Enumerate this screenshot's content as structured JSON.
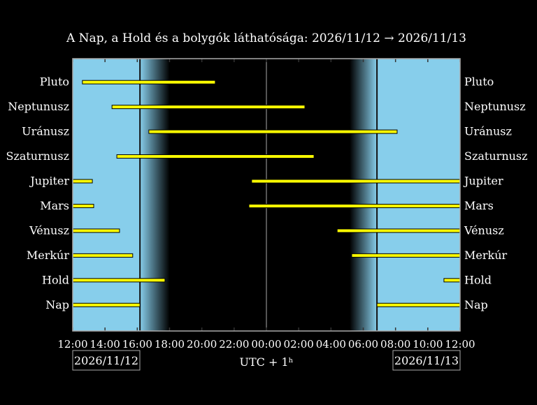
{
  "chart_data": {
    "type": "bar",
    "title": "A Nap, a Hold és a bolygók láthatósága: 2026/11/12 → 2026/11/13",
    "xlabel": "UTC + 1ʰ",
    "x_range": [
      "2026/11/12 12:00",
      "2026/11/13 12:00"
    ],
    "x_ticks": [
      "12:00",
      "14:00",
      "16:00",
      "18:00",
      "20:00",
      "22:00",
      "00:00",
      "02:00",
      "04:00",
      "06:00",
      "08:00",
      "10:00",
      "12:00"
    ],
    "date_labels": {
      "start": "2026/11/12",
      "end": "2026/11/13"
    },
    "grid": false,
    "colors": {
      "day": "#87ceeb",
      "night": "#000000",
      "bar": "#ffff00",
      "bar_edge": "#000000",
      "frame": "#aaaaaa"
    },
    "daylight": {
      "sunset": "16:10",
      "dusk_end": "18:00",
      "dawn_start": "05:10",
      "sunrise": "06:51"
    },
    "series": [
      {
        "name": "Pluto",
        "intervals": [
          [
            "12:36",
            "20:50"
          ]
        ]
      },
      {
        "name": "Neptunusz",
        "intervals": [
          [
            "14:26",
            "02:23"
          ]
        ]
      },
      {
        "name": "Uránusz",
        "intervals": [
          [
            "16:43",
            "08:06"
          ]
        ]
      },
      {
        "name": "Szaturnusz",
        "intervals": [
          [
            "14:44",
            "02:57"
          ]
        ]
      },
      {
        "name": "Jupiter",
        "intervals": [
          [
            "12:00",
            "13:13"
          ],
          [
            "23:05",
            "12:00"
          ]
        ]
      },
      {
        "name": "Mars",
        "intervals": [
          [
            "12:00",
            "13:18"
          ],
          [
            "22:55",
            "12:00"
          ]
        ]
      },
      {
        "name": "Vénusz",
        "intervals": [
          [
            "12:00",
            "14:54"
          ],
          [
            "04:23",
            "12:00"
          ]
        ]
      },
      {
        "name": "Merkúr",
        "intervals": [
          [
            "12:00",
            "15:43"
          ],
          [
            "05:17",
            "12:00"
          ]
        ]
      },
      {
        "name": "Hold",
        "intervals": [
          [
            "12:00",
            "17:43"
          ],
          [
            "11:00",
            "12:00"
          ]
        ]
      },
      {
        "name": "Nap",
        "intervals": [
          [
            "12:00",
            "16:10"
          ],
          [
            "06:51",
            "12:00"
          ]
        ]
      }
    ]
  }
}
